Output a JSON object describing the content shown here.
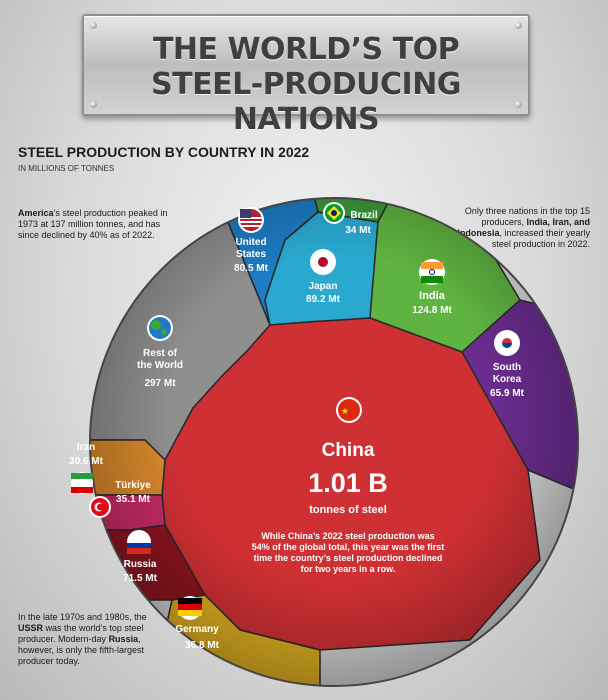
{
  "title": {
    "line1": "THE WORLD’S TOP",
    "line2": "STEEL-PRODUCING NATIONS"
  },
  "subtitle": "STEEL PRODUCTION BY COUNTRY IN 2022",
  "units": "IN MILLIONS OF TONNES",
  "notes": {
    "america": {
      "bold": "America",
      "text": "’s steel production peaked in 1973 at 137 million tonnes, and has since declined by 40% as of 2022."
    },
    "three_nations": {
      "pre": "Only three nations in the top 15 producers, ",
      "bold": "India, Iran, and Indonesia",
      "post": ", increased their yearly steel production in 2022."
    },
    "ussr": {
      "pre": "In the late 1970s and 1980s, the ",
      "bold1": "USSR",
      "mid": " was the world’s top steel producer. Modern-day ",
      "bold2": "Russia",
      "post": ", however, is only the fifth-largest producer today."
    },
    "china": "While China’s 2022 steel production was 54% of the global total, this year was the first time the country’s steel production declined for two years in a row."
  },
  "chart_data": {
    "type": "voronoi-treemap",
    "title": "STEEL PRODUCTION BY COUNTRY IN 2022",
    "unit": "IN MILLIONS OF TONNES",
    "items": [
      {
        "name": "China",
        "value": 1010,
        "label": "1.01 B",
        "sub": "tonnes of steel",
        "color": "#cf3034"
      },
      {
        "name": "Rest of the World",
        "value": 297,
        "label": "297 Mt",
        "color": "#8f8f8f"
      },
      {
        "name": "India",
        "value": 124.8,
        "label": "124.8 Mt",
        "color": "#5fb441"
      },
      {
        "name": "Japan",
        "value": 89.2,
        "label": "89.2 Mt",
        "color": "#2aa8cf"
      },
      {
        "name": "United States",
        "value": 80.5,
        "label": "80.5 Mt",
        "color": "#1d7cc4"
      },
      {
        "name": "Russia",
        "value": 71.5,
        "label": "71.5 Mt",
        "color": "#8e1420"
      },
      {
        "name": "South Korea",
        "value": 65.9,
        "label": "65.9 Mt",
        "color": "#6a2c8e"
      },
      {
        "name": "Germany",
        "value": 36.8,
        "label": "36.8 Mt",
        "color": "#e0b021"
      },
      {
        "name": "Türkiye",
        "value": 35.1,
        "label": "35.1 Mt",
        "color": "#c92c67"
      },
      {
        "name": "Brazil",
        "value": 34,
        "label": "34 Mt",
        "color": "#3d9a3a"
      },
      {
        "name": "Iran",
        "value": 30.6,
        "label": "30.6 Mt",
        "color": "#d9892b"
      }
    ]
  }
}
